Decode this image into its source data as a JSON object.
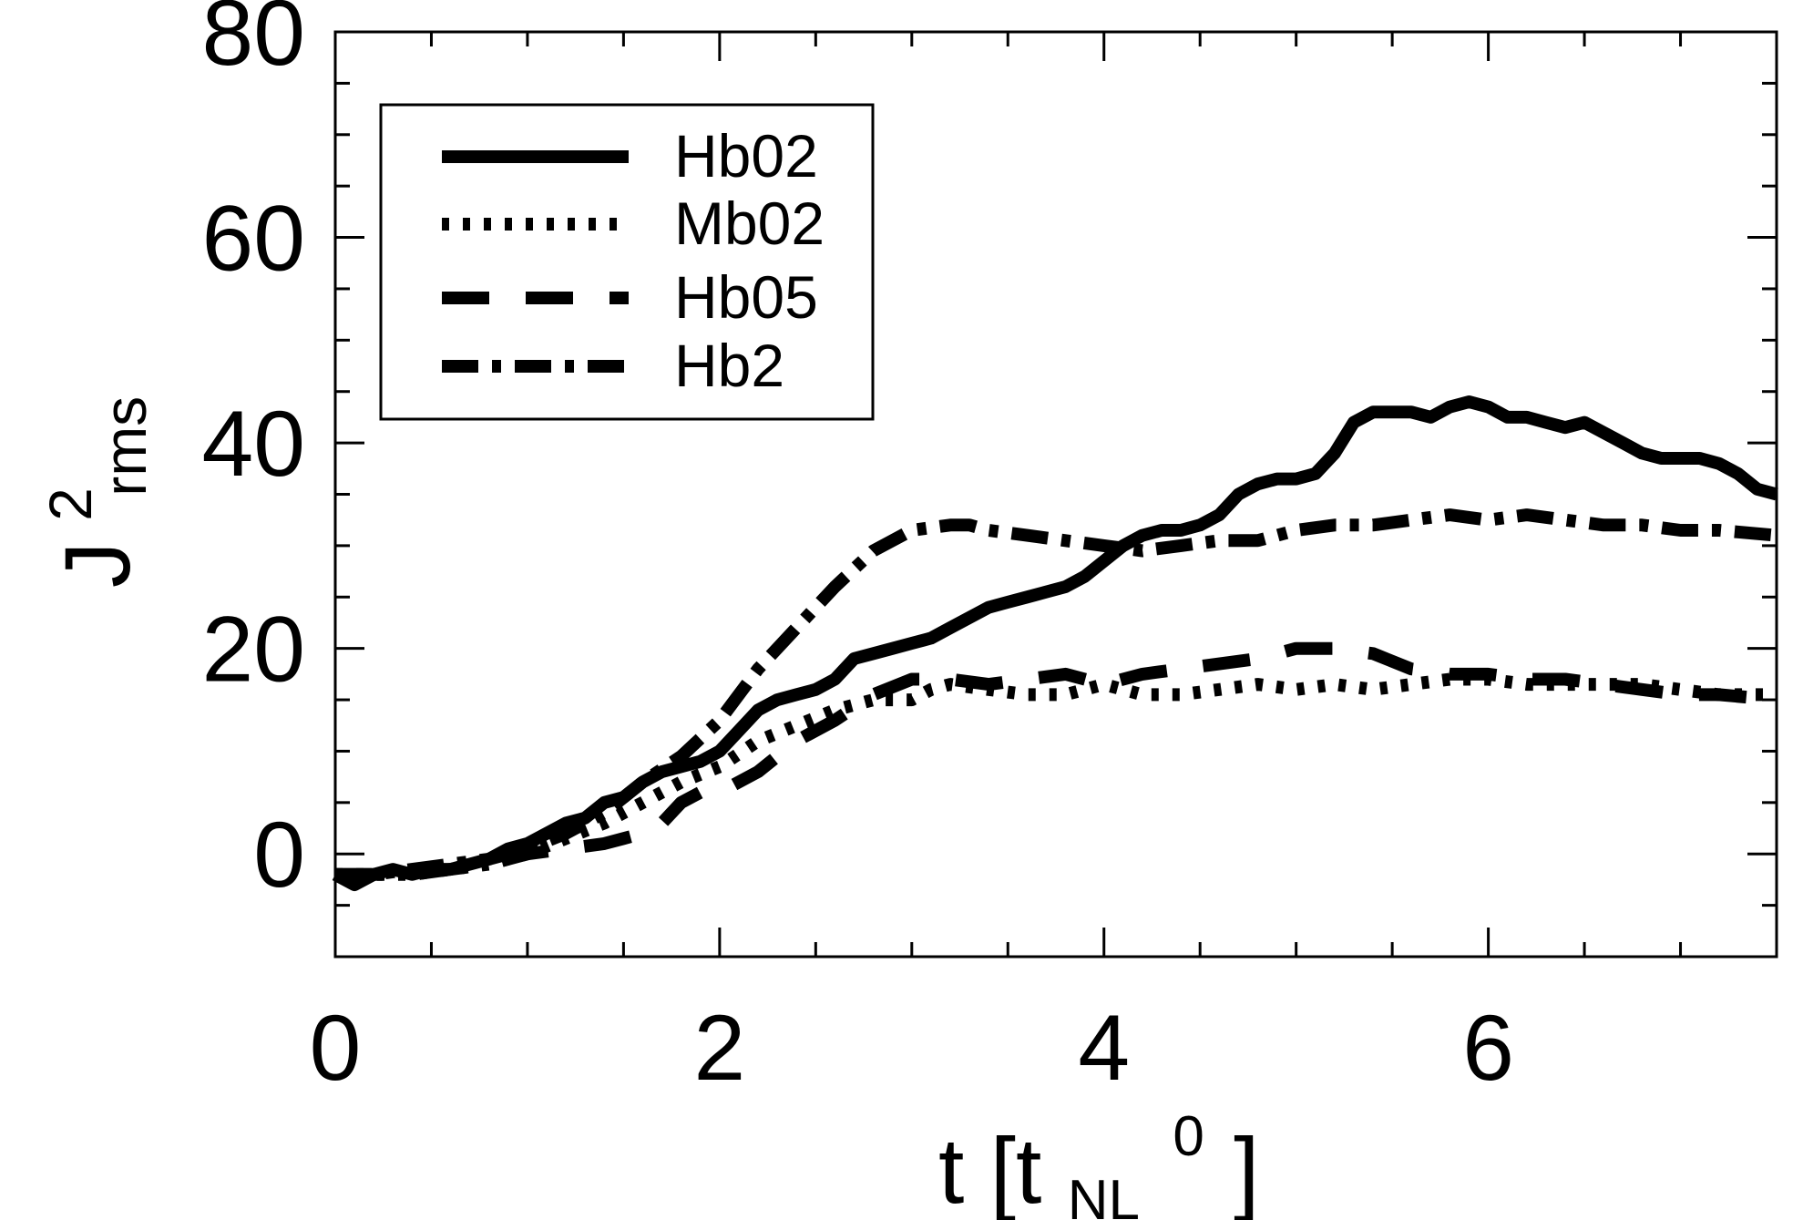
{
  "chart_data": {
    "type": "line",
    "title": "",
    "xlabel": {
      "main": "t [t",
      "sub": "NL",
      "sup": "0",
      "close": "]"
    },
    "ylabel": {
      "main": "J",
      "sup": "2",
      "sub": "rms"
    },
    "xlim": [
      0,
      7.5
    ],
    "ylim": [
      -10,
      80
    ],
    "xticks": [
      0,
      2,
      4,
      6
    ],
    "xtick_labels": [
      "0",
      "2",
      "4",
      "6"
    ],
    "yticks": [
      0,
      20,
      40,
      60,
      80
    ],
    "ytick_labels": [
      "0",
      "20",
      "40",
      "60",
      "80"
    ],
    "minor_xticks": [
      0.5,
      1,
      1.5,
      2.5,
      3,
      3.5,
      4.5,
      5,
      5.5,
      6.5,
      7
    ],
    "minor_yticks": [
      -5,
      5,
      10,
      15,
      25,
      30,
      35,
      45,
      50,
      55,
      65,
      70,
      75
    ],
    "grid": false,
    "legend_position": "top-left",
    "series": [
      {
        "name": "Hb02",
        "style": "solid",
        "x": [
          0,
          0.1,
          0.2,
          0.3,
          0.4,
          0.5,
          0.6,
          0.7,
          0.8,
          0.9,
          1.0,
          1.1,
          1.2,
          1.3,
          1.4,
          1.5,
          1.6,
          1.7,
          1.8,
          1.9,
          2.0,
          2.1,
          2.2,
          2.3,
          2.4,
          2.5,
          2.6,
          2.7,
          2.8,
          2.9,
          3.0,
          3.1,
          3.2,
          3.3,
          3.4,
          3.5,
          3.6,
          3.7,
          3.8,
          3.9,
          4.0,
          4.1,
          4.2,
          4.3,
          4.4,
          4.5,
          4.6,
          4.7,
          4.8,
          4.9,
          5.0,
          5.1,
          5.2,
          5.3,
          5.4,
          5.5,
          5.6,
          5.7,
          5.8,
          5.9,
          6.0,
          6.1,
          6.2,
          6.3,
          6.4,
          6.5,
          6.6,
          6.7,
          6.8,
          6.9,
          7.0,
          7.1,
          7.2,
          7.3,
          7.4,
          7.5
        ],
        "values": [
          -2,
          -3,
          -2,
          -1.5,
          -2,
          -1.5,
          -1.5,
          -1,
          -0.5,
          0.5,
          1,
          2,
          3,
          3.5,
          5,
          5.5,
          7,
          8,
          8.5,
          9,
          10,
          12,
          14,
          15,
          15.5,
          16,
          17,
          19,
          19.5,
          20,
          20.5,
          21,
          22,
          23,
          24,
          24.5,
          25,
          25.5,
          26,
          27,
          28.5,
          30,
          31,
          31.5,
          31.5,
          32,
          33,
          35,
          36,
          36.5,
          36.5,
          37,
          39,
          42,
          43,
          43,
          43,
          42.5,
          43.5,
          44,
          43.5,
          42.5,
          42.5,
          42,
          41.5,
          42,
          41,
          40,
          39,
          38.5,
          38.5,
          38.5,
          38,
          37,
          35.5,
          35
        ]
      },
      {
        "name": "Mb02",
        "style": "dotted",
        "x": [
          0,
          0.2,
          0.4,
          0.6,
          0.8,
          1.0,
          1.2,
          1.4,
          1.6,
          1.8,
          2.0,
          2.2,
          2.4,
          2.6,
          2.8,
          2.9,
          3.0,
          3.1,
          3.2,
          3.4,
          3.6,
          3.8,
          4.0,
          4.2,
          4.4,
          4.6,
          4.8,
          5.0,
          5.2,
          5.4,
          5.6,
          5.8,
          6.0,
          6.2,
          6.4,
          6.6,
          6.8,
          7.0,
          7.2,
          7.5
        ],
        "values": [
          -2,
          -2,
          -2,
          -1.5,
          -1,
          0,
          1.5,
          3,
          5,
          7,
          8.5,
          11,
          12.5,
          14,
          15,
          15,
          15,
          16,
          16.5,
          16,
          15.5,
          15.5,
          16.5,
          15.5,
          15.5,
          16,
          16.5,
          16,
          16.5,
          16,
          16.5,
          17,
          17,
          16.5,
          16.5,
          16.5,
          16.5,
          16,
          15.5,
          15.5
        ]
      },
      {
        "name": "Hb05",
        "style": "dashed",
        "x": [
          0,
          0.2,
          0.4,
          0.6,
          0.8,
          1.0,
          1.2,
          1.4,
          1.5,
          1.6,
          1.7,
          1.8,
          1.9,
          2.0,
          2.2,
          2.4,
          2.6,
          2.8,
          3.0,
          3.2,
          3.4,
          3.6,
          3.8,
          4.0,
          4.2,
          4.4,
          4.6,
          4.8,
          5.0,
          5.2,
          5.4,
          5.6,
          5.8,
          6.0,
          6.2,
          6.4,
          6.6,
          6.8,
          7.0,
          7.2,
          7.5
        ],
        "values": [
          -2,
          -2,
          -2,
          -1.5,
          -1,
          0,
          0.5,
          1,
          1.5,
          2,
          3,
          5,
          6,
          6,
          8,
          11,
          13,
          15.5,
          17,
          17,
          16.5,
          17,
          17.5,
          16.5,
          17.5,
          18,
          18.5,
          19,
          20,
          20,
          19.5,
          18,
          17.5,
          17.5,
          17,
          17,
          16.5,
          16,
          15.5,
          15.5,
          15
        ]
      },
      {
        "name": "Hb2",
        "style": "dashdot",
        "x": [
          0,
          0.2,
          0.4,
          0.6,
          0.8,
          1.0,
          1.2,
          1.4,
          1.6,
          1.8,
          2.0,
          2.2,
          2.4,
          2.6,
          2.8,
          3.0,
          3.2,
          3.3,
          3.4,
          3.6,
          3.8,
          4.0,
          4.2,
          4.4,
          4.6,
          4.8,
          5.0,
          5.2,
          5.4,
          5.6,
          5.8,
          6.0,
          6.2,
          6.4,
          6.6,
          6.8,
          7.0,
          7.2,
          7.5
        ],
        "values": [
          -2,
          -2,
          -1.5,
          -1,
          -0.5,
          0.5,
          2,
          4,
          7,
          9.5,
          13,
          18,
          22,
          26,
          29.5,
          31.5,
          32,
          32,
          31.5,
          31,
          30.5,
          30,
          29.5,
          30,
          30.5,
          30.5,
          31.5,
          32,
          32,
          32.5,
          33,
          32.5,
          33,
          32.5,
          32,
          32,
          31.5,
          31.5,
          31
        ]
      }
    ]
  },
  "legend": {
    "items": [
      "Hb02",
      "Mb02",
      "Hb05",
      "Hb2"
    ]
  }
}
